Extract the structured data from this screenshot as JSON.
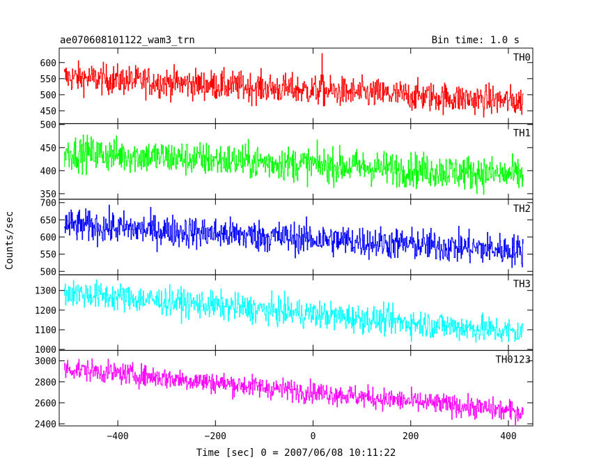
{
  "header": {
    "title": "ae070608101122_wam3_trn",
    "bin_time": "Bin time: 1.0 s"
  },
  "chart_data": {
    "type": "line",
    "xlabel": "Time [sec] 0 = 2007/06/08 10:11:22",
    "ylabel": "Counts/sec",
    "xlim": [
      -520,
      450
    ],
    "x_tick_labels": [
      "−400",
      "−200",
      "0",
      "200",
      "400"
    ],
    "x_ticks": [
      -400,
      -200,
      0,
      200,
      400
    ],
    "x_start": -510,
    "x_end": 430,
    "bin": 1.0,
    "panels": [
      {
        "name": "TH0",
        "color": "#ff0000",
        "ylim": [
          410,
          645
        ],
        "y_ticks": [
          450,
          500,
          550,
          600
        ],
        "y_tick_labels": [
          "450",
          "500",
          "550",
          "600"
        ],
        "trend_start": 555,
        "trend_end": 478,
        "noise": 25,
        "spike_x": 18,
        "spike_value": 628
      },
      {
        "name": "TH1",
        "color": "#00ff00",
        "ylim": [
          338,
          502
        ],
        "y_ticks": [
          350,
          400,
          450,
          500
        ],
        "y_tick_labels": [
          "350",
          "400",
          "450",
          "500"
        ],
        "trend_start": 440,
        "trend_end": 390,
        "noise": 20
      },
      {
        "name": "TH2",
        "color": "#0000ff",
        "ylim": [
          490,
          710
        ],
        "y_ticks": [
          500,
          550,
          600,
          650,
          700
        ],
        "y_tick_labels": [
          "500",
          "550",
          "600",
          "650",
          "700"
        ],
        "trend_start": 635,
        "trend_end": 560,
        "noise": 25
      },
      {
        "name": "TH3",
        "color": "#00ffff",
        "ylim": [
          995,
          1380
        ],
        "y_ticks": [
          1000,
          1100,
          1200,
          1300
        ],
        "y_tick_labels": [
          "1000",
          "1100",
          "1200",
          "1300"
        ],
        "trend_start": 1290,
        "trend_end": 1085,
        "noise": 38
      },
      {
        "name": "TH0123",
        "color": "#ff00ff",
        "ylim": [
          2380,
          3100
        ],
        "y_ticks": [
          2400,
          2600,
          2800,
          3000
        ],
        "y_tick_labels": [
          "2400",
          "2600",
          "2800",
          "3000"
        ],
        "trend_start": 2930,
        "trend_end": 2510,
        "noise": 55
      }
    ]
  }
}
